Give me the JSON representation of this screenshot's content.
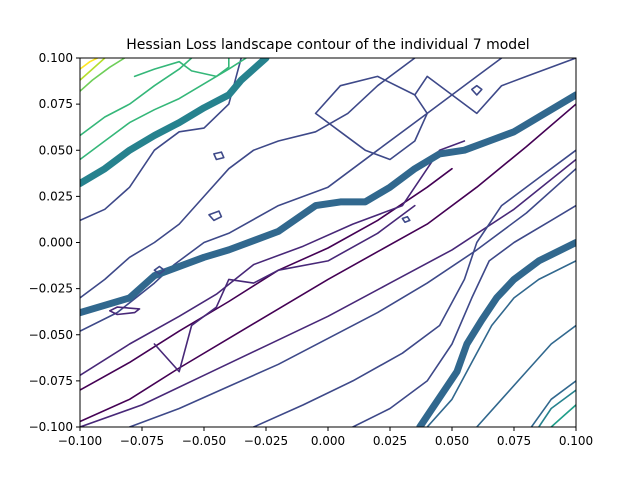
{
  "chart_data": {
    "type": "contour",
    "title": "Hessian Loss landscape contour of the individual 7 model",
    "xlabel": "",
    "ylabel": "",
    "xlim": [
      -0.1,
      0.1
    ],
    "ylim": [
      -0.1,
      0.1
    ],
    "x_ticks": [
      "−0.100",
      "−0.075",
      "−0.050",
      "−0.025",
      "0.000",
      "0.025",
      "0.050",
      "0.075",
      "0.100"
    ],
    "y_ticks": [
      "−0.100",
      "−0.075",
      "−0.050",
      "−0.025",
      "0.000",
      "0.025",
      "0.050",
      "0.075",
      "0.100"
    ],
    "colormap": "viridis",
    "grid": false,
    "legend": "none",
    "colors": [
      "#440154",
      "#482878",
      "#3e4989",
      "#31688e",
      "#26828e",
      "#1f9e89",
      "#35b779",
      "#6ece58",
      "#b5de2b",
      "#fde725"
    ],
    "contours": [
      {
        "level": 0,
        "color": "#440154",
        "width": 1.6,
        "points": [
          [
            -0.1,
            -0.097
          ],
          [
            -0.08,
            -0.085
          ],
          [
            -0.06,
            -0.068
          ],
          [
            -0.04,
            -0.052
          ],
          [
            -0.02,
            -0.036
          ],
          [
            0.0,
            -0.02
          ],
          [
            0.02,
            -0.005
          ],
          [
            0.04,
            0.01
          ],
          [
            0.06,
            0.03
          ],
          [
            0.08,
            0.052
          ],
          [
            0.1,
            0.075
          ]
        ]
      },
      {
        "level": 0,
        "color": "#440154",
        "width": 1.6,
        "points": [
          [
            -0.1,
            -0.08
          ],
          [
            -0.08,
            -0.065
          ],
          [
            -0.06,
            -0.048
          ],
          [
            -0.04,
            -0.032
          ],
          [
            -0.02,
            -0.015
          ],
          [
            0.0,
            -0.003
          ],
          [
            0.02,
            0.012
          ],
          [
            0.04,
            0.03
          ],
          [
            0.05,
            0.04
          ]
        ]
      },
      {
        "level": 1,
        "color": "#482878",
        "width": 1.6,
        "points": [
          [
            -0.1,
            -0.1
          ],
          [
            -0.075,
            -0.088
          ],
          [
            -0.05,
            -0.072
          ],
          [
            -0.025,
            -0.056
          ],
          [
            0.0,
            -0.04
          ],
          [
            0.025,
            -0.022
          ],
          [
            0.05,
            -0.004
          ],
          [
            0.075,
            0.018
          ],
          [
            0.1,
            0.045
          ]
        ]
      },
      {
        "level": 1,
        "color": "#482878",
        "width": 1.6,
        "points": [
          [
            -0.1,
            -0.072
          ],
          [
            -0.08,
            -0.055
          ],
          [
            -0.06,
            -0.04
          ],
          [
            -0.045,
            -0.028
          ],
          [
            -0.03,
            -0.012
          ],
          [
            -0.01,
            -0.002
          ],
          [
            0.01,
            0.01
          ],
          [
            0.03,
            0.02
          ],
          [
            0.045,
            0.05
          ],
          [
            0.055,
            0.055
          ]
        ]
      },
      {
        "level": 1,
        "color": "#482878",
        "width": 1.6,
        "points": [
          [
            -0.07,
            -0.055
          ],
          [
            -0.06,
            -0.07
          ],
          [
            -0.055,
            -0.045
          ],
          [
            -0.045,
            -0.035
          ],
          [
            -0.04,
            -0.02
          ],
          [
            -0.03,
            -0.022
          ],
          [
            -0.02,
            -0.015
          ],
          [
            0.0,
            -0.01
          ],
          [
            0.02,
            0.005
          ],
          [
            0.035,
            0.02
          ]
        ]
      },
      {
        "level": 2,
        "color": "#3e4989",
        "width": 1.6,
        "points": [
          [
            -0.08,
            -0.1
          ],
          [
            -0.06,
            -0.09
          ],
          [
            -0.04,
            -0.078
          ],
          [
            -0.02,
            -0.066
          ],
          [
            0.0,
            -0.052
          ],
          [
            0.02,
            -0.038
          ],
          [
            0.04,
            -0.022
          ],
          [
            0.06,
            -0.004
          ],
          [
            0.08,
            0.016
          ],
          [
            0.1,
            0.04
          ]
        ]
      },
      {
        "level": 2,
        "color": "#3e4989",
        "width": 1.6,
        "points": [
          [
            -0.1,
            -0.048
          ],
          [
            -0.085,
            -0.038
          ],
          [
            -0.07,
            -0.022
          ],
          [
            -0.062,
            -0.012
          ],
          [
            -0.05,
            0.0
          ],
          [
            -0.04,
            0.005
          ],
          [
            -0.02,
            0.02
          ],
          [
            0.0,
            0.03
          ],
          [
            0.02,
            0.05
          ],
          [
            0.04,
            0.07
          ],
          [
            0.06,
            0.09
          ],
          [
            0.07,
            0.1
          ]
        ]
      },
      {
        "level": 2,
        "color": "#3e4989",
        "width": 1.6,
        "points": [
          [
            -0.1,
            -0.03
          ],
          [
            -0.09,
            -0.02
          ],
          [
            -0.08,
            -0.008
          ],
          [
            -0.07,
            0.0
          ],
          [
            -0.06,
            0.01
          ],
          [
            -0.05,
            0.025
          ],
          [
            -0.04,
            0.04
          ],
          [
            -0.03,
            0.05
          ],
          [
            -0.02,
            0.055
          ],
          [
            -0.005,
            0.06
          ],
          [
            0.008,
            0.07
          ],
          [
            0.02,
            0.085
          ],
          [
            0.035,
            0.1
          ]
        ]
      },
      {
        "level": 2,
        "color": "#3e4989",
        "width": 1.6,
        "points": [
          [
            -0.1,
            0.012
          ],
          [
            -0.09,
            0.018
          ],
          [
            -0.08,
            0.03
          ],
          [
            -0.07,
            0.05
          ],
          [
            -0.06,
            0.06
          ],
          [
            -0.05,
            0.062
          ],
          [
            -0.04,
            0.075
          ],
          [
            -0.035,
            0.1
          ]
        ]
      },
      {
        "level": 2,
        "color": "#3e4989",
        "width": 1.6,
        "points": [
          [
            -0.03,
            -0.1
          ],
          [
            -0.01,
            -0.088
          ],
          [
            0.01,
            -0.075
          ],
          [
            0.03,
            -0.06
          ],
          [
            0.045,
            -0.045
          ],
          [
            0.055,
            -0.02
          ],
          [
            0.06,
            0.0
          ],
          [
            0.07,
            0.02
          ],
          [
            0.085,
            0.035
          ],
          [
            0.1,
            0.05
          ]
        ]
      },
      {
        "level": 2,
        "color": "#3e4989",
        "width": 1.6,
        "points": [
          [
            0.01,
            -0.1
          ],
          [
            0.025,
            -0.09
          ],
          [
            0.04,
            -0.075
          ],
          [
            0.05,
            -0.055
          ],
          [
            0.058,
            -0.03
          ],
          [
            0.065,
            -0.01
          ],
          [
            0.075,
            0.0
          ],
          [
            0.09,
            0.012
          ],
          [
            0.1,
            0.02
          ]
        ]
      },
      {
        "level": 2,
        "color": "#3e4989",
        "width": 1.6,
        "points": [
          [
            0.035,
            0.08
          ],
          [
            0.04,
            0.09
          ],
          [
            0.05,
            0.08
          ],
          [
            0.06,
            0.07
          ],
          [
            0.07,
            0.085
          ],
          [
            0.08,
            0.09
          ],
          [
            0.1,
            0.1
          ]
        ]
      },
      {
        "level": 2,
        "color": "#3e4989",
        "width": 1.6,
        "points": [
          [
            -0.005,
            0.07
          ],
          [
            0.005,
            0.06
          ],
          [
            0.015,
            0.05
          ],
          [
            0.025,
            0.045
          ],
          [
            0.035,
            0.055
          ],
          [
            0.04,
            0.07
          ],
          [
            0.035,
            0.08
          ],
          [
            0.02,
            0.09
          ],
          [
            0.005,
            0.085
          ],
          [
            -0.005,
            0.07
          ]
        ]
      },
      {
        "level": 3,
        "color": "#31688e",
        "width": 1.6,
        "points": [
          [
            0.04,
            -0.1
          ],
          [
            0.05,
            -0.085
          ],
          [
            0.058,
            -0.065
          ],
          [
            0.066,
            -0.045
          ],
          [
            0.075,
            -0.03
          ],
          [
            0.085,
            -0.02
          ],
          [
            0.1,
            -0.01
          ]
        ]
      },
      {
        "level": 3,
        "color": "#31688e",
        "width": 1.6,
        "points": [
          [
            0.06,
            -0.1
          ],
          [
            0.07,
            -0.085
          ],
          [
            0.08,
            -0.07
          ],
          [
            0.09,
            -0.055
          ],
          [
            0.1,
            -0.045
          ]
        ]
      },
      {
        "level": 3,
        "color": "#31688e",
        "width": 1.6,
        "points": [
          [
            0.082,
            -0.1
          ],
          [
            0.09,
            -0.085
          ],
          [
            0.1,
            -0.075
          ]
        ]
      },
      {
        "level": 4,
        "color": "#31688e",
        "width": 7,
        "points": [
          [
            -0.1,
            -0.038
          ],
          [
            -0.08,
            -0.03
          ],
          [
            -0.07,
            -0.018
          ],
          [
            -0.05,
            -0.008
          ],
          [
            -0.04,
            -0.004
          ],
          [
            -0.02,
            0.006
          ],
          [
            -0.005,
            0.02
          ],
          [
            0.005,
            0.022
          ],
          [
            0.015,
            0.022
          ],
          [
            0.025,
            0.03
          ],
          [
            0.035,
            0.04
          ],
          [
            0.045,
            0.048
          ],
          [
            0.055,
            0.05
          ],
          [
            0.065,
            0.055
          ],
          [
            0.075,
            0.06
          ],
          [
            0.085,
            0.068
          ],
          [
            0.1,
            0.08
          ]
        ]
      },
      {
        "level": 4,
        "color": "#31688e",
        "width": 7,
        "points": [
          [
            0.037,
            -0.1
          ],
          [
            0.042,
            -0.09
          ],
          [
            0.047,
            -0.08
          ],
          [
            0.052,
            -0.07
          ],
          [
            0.056,
            -0.055
          ],
          [
            0.062,
            -0.042
          ],
          [
            0.068,
            -0.03
          ],
          [
            0.075,
            -0.02
          ],
          [
            0.085,
            -0.01
          ],
          [
            0.1,
            0.0
          ]
        ]
      },
      {
        "level": 5,
        "color": "#26828e",
        "width": 1.6,
        "points": [
          [
            0.085,
            -0.1
          ],
          [
            0.09,
            -0.09
          ],
          [
            0.1,
            -0.08
          ]
        ]
      },
      {
        "level": 6,
        "color": "#1f9e89",
        "width": 1.6,
        "points": [
          [
            0.09,
            -0.1
          ],
          [
            0.095,
            -0.094
          ],
          [
            0.1,
            -0.088
          ]
        ]
      },
      {
        "level": 7,
        "color": "#26828e",
        "width": 7,
        "points": [
          [
            -0.1,
            0.032
          ],
          [
            -0.09,
            0.04
          ],
          [
            -0.08,
            0.05
          ],
          [
            -0.07,
            0.058
          ],
          [
            -0.06,
            0.065
          ],
          [
            -0.05,
            0.073
          ],
          [
            -0.04,
            0.08
          ],
          [
            -0.035,
            0.088
          ],
          [
            -0.025,
            0.1
          ]
        ]
      },
      {
        "level": 8,
        "color": "#35b779",
        "width": 1.6,
        "points": [
          [
            -0.1,
            0.045
          ],
          [
            -0.09,
            0.055
          ],
          [
            -0.08,
            0.065
          ],
          [
            -0.07,
            0.072
          ],
          [
            -0.06,
            0.078
          ],
          [
            -0.05,
            0.086
          ],
          [
            -0.04,
            0.094
          ],
          [
            -0.033,
            0.1
          ]
        ]
      },
      {
        "level": 8,
        "color": "#35b779",
        "width": 1.6,
        "points": [
          [
            -0.1,
            0.058
          ],
          [
            -0.09,
            0.068
          ],
          [
            -0.08,
            0.075
          ],
          [
            -0.07,
            0.085
          ],
          [
            -0.06,
            0.094
          ],
          [
            -0.055,
            0.1
          ]
        ]
      },
      {
        "level": 8,
        "color": "#35b779",
        "width": 1.6,
        "points": [
          [
            -0.078,
            0.09
          ],
          [
            -0.07,
            0.094
          ],
          [
            -0.06,
            0.098
          ],
          [
            -0.055,
            0.093
          ],
          [
            -0.045,
            0.09
          ],
          [
            -0.04,
            0.095
          ],
          [
            -0.04,
            0.1
          ]
        ]
      },
      {
        "level": 9,
        "color": "#6ece58",
        "width": 1.6,
        "points": [
          [
            -0.1,
            0.082
          ],
          [
            -0.095,
            0.088
          ],
          [
            -0.088,
            0.095
          ],
          [
            -0.082,
            0.1
          ]
        ]
      },
      {
        "level": 9,
        "color": "#b5de2b",
        "width": 1.6,
        "points": [
          [
            -0.1,
            0.088
          ],
          [
            -0.095,
            0.094
          ],
          [
            -0.09,
            0.1
          ]
        ]
      },
      {
        "level": 9,
        "color": "#fde725",
        "width": 1.6,
        "points": [
          [
            -0.1,
            0.094
          ],
          [
            -0.096,
            0.098
          ],
          [
            -0.093,
            0.1
          ]
        ]
      },
      {
        "level": 1,
        "color": "#482878",
        "width": 1.6,
        "points": [
          [
            -0.088,
            -0.037
          ],
          [
            -0.085,
            -0.039
          ],
          [
            -0.078,
            -0.038
          ],
          [
            -0.076,
            -0.036
          ],
          [
            -0.085,
            -0.035
          ],
          [
            -0.088,
            -0.037
          ]
        ]
      },
      {
        "level": 2,
        "color": "#3e4989",
        "width": 1.6,
        "points": [
          [
            -0.048,
            0.015
          ],
          [
            -0.046,
            0.012
          ],
          [
            -0.043,
            0.014
          ],
          [
            -0.044,
            0.017
          ],
          [
            -0.048,
            0.015
          ]
        ]
      },
      {
        "level": 2,
        "color": "#3e4989",
        "width": 1.6,
        "points": [
          [
            -0.046,
            0.048
          ],
          [
            -0.045,
            0.045
          ],
          [
            -0.042,
            0.046
          ],
          [
            -0.043,
            0.049
          ],
          [
            -0.046,
            0.048
          ]
        ]
      },
      {
        "level": 2,
        "color": "#3e4989",
        "width": 1.6,
        "points": [
          [
            0.03,
            0.013
          ],
          [
            0.031,
            0.011
          ],
          [
            0.033,
            0.012
          ],
          [
            0.032,
            0.014
          ],
          [
            0.03,
            0.013
          ]
        ]
      },
      {
        "level": 2,
        "color": "#3e4989",
        "width": 1.6,
        "points": [
          [
            0.058,
            0.083
          ],
          [
            0.06,
            0.08
          ],
          [
            0.062,
            0.083
          ],
          [
            0.06,
            0.085
          ],
          [
            0.058,
            0.083
          ]
        ]
      },
      {
        "level": 2,
        "color": "#3e4989",
        "width": 1.6,
        "points": [
          [
            -0.07,
            -0.015
          ],
          [
            -0.068,
            -0.017
          ],
          [
            -0.066,
            -0.015
          ],
          [
            -0.068,
            -0.013
          ],
          [
            -0.07,
            -0.015
          ]
        ]
      }
    ]
  }
}
